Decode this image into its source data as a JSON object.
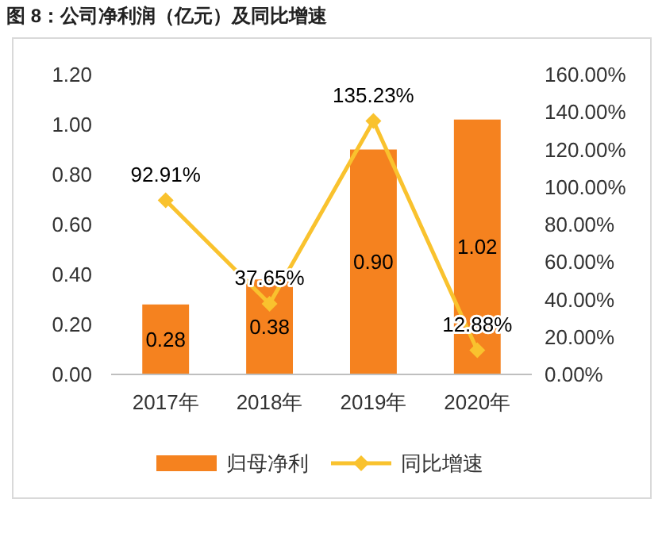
{
  "chart_data": {
    "type": "bar",
    "title": "图 8：公司净利润（亿元）及同比增速",
    "categories": [
      "2017年",
      "2018年",
      "2019年",
      "2020年"
    ],
    "series": [
      {
        "name": "归母净利",
        "color": "#f5821f",
        "values": [
          0.28,
          0.38,
          0.9,
          1.02
        ],
        "value_labels": [
          "0.28",
          "0.38",
          "0.90",
          "1.02"
        ]
      },
      {
        "name": "同比增速",
        "type": "line",
        "axis": "y2",
        "color": "#f9c22e",
        "marker": "diamond",
        "values": [
          92.91,
          37.65,
          135.23,
          12.88
        ],
        "value_labels": [
          "92.91%",
          "37.65%",
          "135.23%",
          "12.88%"
        ]
      }
    ],
    "ylim": [
      0,
      1.2
    ],
    "yticks": [
      {
        "value": 0,
        "label": "0.00"
      },
      {
        "value": 0.2,
        "label": "0.20"
      },
      {
        "value": 0.4,
        "label": "0.40"
      },
      {
        "value": 0.6,
        "label": "0.60"
      },
      {
        "value": 0.8,
        "label": "0.80"
      },
      {
        "value": 1,
        "label": "1.00"
      },
      {
        "value": 1.2,
        "label": "1.20"
      }
    ],
    "y2lim": [
      0,
      160
    ],
    "y2ticks": [
      {
        "value": 0,
        "label": "0.00%"
      },
      {
        "value": 20,
        "label": "20.00%"
      },
      {
        "value": 40,
        "label": "40.00%"
      },
      {
        "value": 60,
        "label": "60.00%"
      },
      {
        "value": 80,
        "label": "80.00%"
      },
      {
        "value": 100,
        "label": "100.00%"
      },
      {
        "value": 120,
        "label": "120.00%"
      },
      {
        "value": 140,
        "label": "140.00%"
      },
      {
        "value": 160,
        "label": "160.00%"
      }
    ],
    "grid": false,
    "legend": "bottom"
  }
}
